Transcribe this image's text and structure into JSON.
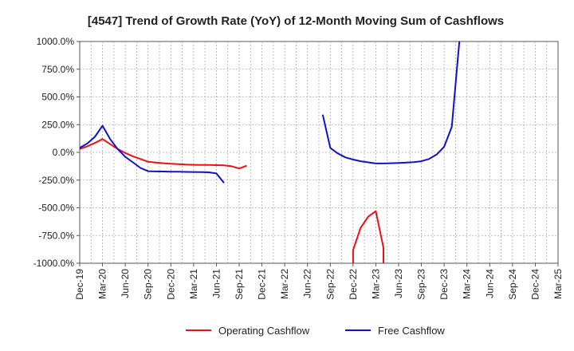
{
  "chart_data": {
    "type": "line",
    "title": "[4547]  Trend of Growth Rate (YoY) of 12-Month Moving Sum of Cashflows",
    "xlabel": "",
    "ylabel": "",
    "ylim": [
      -1000,
      1000
    ],
    "yticks": [
      {
        "value": 1000,
        "label": "1000.0%"
      },
      {
        "value": 750,
        "label": "750.0%"
      },
      {
        "value": 500,
        "label": "500.0%"
      },
      {
        "value": 250,
        "label": "250.0%"
      },
      {
        "value": 0,
        "label": "0.0%"
      },
      {
        "value": -250,
        "label": "-250.0%"
      },
      {
        "value": -500,
        "label": "-500.0%"
      },
      {
        "value": -750,
        "label": "-750.0%"
      },
      {
        "value": -1000,
        "label": "-1000.0%"
      }
    ],
    "xticks": [
      "Dec-19",
      "Mar-20",
      "Jun-20",
      "Sep-20",
      "Dec-20",
      "Mar-21",
      "Jun-21",
      "Sep-21",
      "Dec-21",
      "Mar-22",
      "Jun-22",
      "Sep-22",
      "Dec-22",
      "Mar-23",
      "Jun-23",
      "Sep-23",
      "Dec-23",
      "Mar-24",
      "Jun-24",
      "Sep-24",
      "Dec-24",
      "Mar-25"
    ],
    "grid": true,
    "legend_position": "bottom",
    "series": [
      {
        "name": "Operating Cashflow",
        "color": "#ee1111",
        "segments": [
          [
            {
              "x": "Dec-19",
              "y": 30
            },
            {
              "x": "Jan-20",
              "y": 55
            },
            {
              "x": "Feb-20",
              "y": 85
            },
            {
              "x": "Mar-20",
              "y": 120
            },
            {
              "x": "Apr-20",
              "y": 75
            },
            {
              "x": "May-20",
              "y": 30
            },
            {
              "x": "Jun-20",
              "y": -5
            },
            {
              "x": "Jul-20",
              "y": -35
            },
            {
              "x": "Aug-20",
              "y": -60
            },
            {
              "x": "Sep-20",
              "y": -85
            },
            {
              "x": "Oct-20",
              "y": -92
            },
            {
              "x": "Nov-20",
              "y": -98
            },
            {
              "x": "Dec-20",
              "y": -102
            },
            {
              "x": "Jan-21",
              "y": -106
            },
            {
              "x": "Feb-21",
              "y": -110
            },
            {
              "x": "Mar-21",
              "y": -112
            },
            {
              "x": "Apr-21",
              "y": -113
            },
            {
              "x": "May-21",
              "y": -114
            },
            {
              "x": "Jun-21",
              "y": -115
            },
            {
              "x": "Jul-21",
              "y": -117
            },
            {
              "x": "Aug-21",
              "y": -125
            },
            {
              "x": "Sep-21",
              "y": -145
            },
            {
              "x": "Oct-21",
              "y": -120
            }
          ],
          [
            {
              "x": "Dec-22",
              "y": -1000
            },
            {
              "x": "Dec-22",
              "y": -880
            },
            {
              "x": "Jan-23",
              "y": -680
            },
            {
              "x": "Feb-23",
              "y": -580
            },
            {
              "x": "Mar-23",
              "y": -530
            },
            {
              "x": "Apr-23",
              "y": -860
            },
            {
              "x": "Apr-23",
              "y": -1000
            }
          ]
        ]
      },
      {
        "name": "Free Cashflow",
        "color": "#1111cc",
        "segments": [
          [
            {
              "x": "Dec-19",
              "y": 40
            },
            {
              "x": "Jan-20",
              "y": 80
            },
            {
              "x": "Feb-20",
              "y": 140
            },
            {
              "x": "Mar-20",
              "y": 240
            },
            {
              "x": "Apr-20",
              "y": 120
            },
            {
              "x": "May-20",
              "y": 30
            },
            {
              "x": "Jun-20",
              "y": -40
            },
            {
              "x": "Jul-20",
              "y": -90
            },
            {
              "x": "Aug-20",
              "y": -140
            },
            {
              "x": "Sep-20",
              "y": -170
            },
            {
              "x": "Oct-20",
              "y": -172
            },
            {
              "x": "Nov-20",
              "y": -173
            },
            {
              "x": "Dec-20",
              "y": -174
            },
            {
              "x": "Jan-21",
              "y": -175
            },
            {
              "x": "Feb-21",
              "y": -176
            },
            {
              "x": "Mar-21",
              "y": -177
            },
            {
              "x": "Apr-21",
              "y": -178
            },
            {
              "x": "May-21",
              "y": -180
            },
            {
              "x": "Jun-21",
              "y": -190
            },
            {
              "x": "Jul-21",
              "y": -275
            }
          ],
          [
            {
              "x": "Aug-22",
              "y": 340
            },
            {
              "x": "Sep-22",
              "y": 40
            },
            {
              "x": "Oct-22",
              "y": -10
            },
            {
              "x": "Nov-22",
              "y": -45
            },
            {
              "x": "Dec-22",
              "y": -65
            },
            {
              "x": "Jan-23",
              "y": -80
            },
            {
              "x": "Feb-23",
              "y": -90
            },
            {
              "x": "Mar-23",
              "y": -100
            },
            {
              "x": "Apr-23",
              "y": -100
            },
            {
              "x": "May-23",
              "y": -98
            },
            {
              "x": "Jun-23",
              "y": -95
            },
            {
              "x": "Jul-23",
              "y": -92
            },
            {
              "x": "Aug-23",
              "y": -88
            },
            {
              "x": "Sep-23",
              "y": -80
            },
            {
              "x": "Oct-23",
              "y": -60
            },
            {
              "x": "Nov-23",
              "y": -20
            },
            {
              "x": "Dec-23",
              "y": 50
            },
            {
              "x": "Jan-24",
              "y": 230
            },
            {
              "x": "Feb-24",
              "y": 1000
            }
          ]
        ]
      }
    ]
  }
}
